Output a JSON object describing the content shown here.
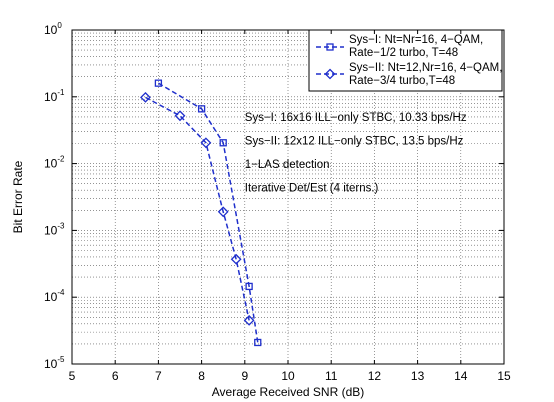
{
  "chart_data": {
    "type": "line",
    "xlabel": "Average Received SNR (dB)",
    "ylabel": "Bit Error Rate",
    "xlim": [
      5,
      15
    ],
    "ylim": [
      1e-05,
      1
    ],
    "y_scale": "log",
    "grid": true,
    "x_ticks": [
      5,
      6,
      7,
      8,
      9,
      10,
      11,
      12,
      13,
      14,
      15
    ],
    "y_ticks": [
      {
        "base": "10",
        "exp": "0",
        "value": 1
      },
      {
        "base": "10",
        "exp": "-1",
        "value": 0.1
      },
      {
        "base": "10",
        "exp": "-2",
        "value": 0.01
      },
      {
        "base": "10",
        "exp": "-3",
        "value": 0.001
      },
      {
        "base": "10",
        "exp": "-4",
        "value": 0.0001
      },
      {
        "base": "10",
        "exp": "-5",
        "value": 1e-05
      }
    ],
    "legend_position": "top-right",
    "series": [
      {
        "name": "Sys-I: Nt=Nr=16, 4-QAM, Rate-1/2 turbo, T=48",
        "legend_lines": [
          "Sys−I: Nt=Nr=16, 4−QAM,",
          "Rate−1/2 turbo, T=48"
        ],
        "marker": "square",
        "color": "#1f2fcc",
        "x": [
          7.0,
          8.0,
          8.5,
          9.1,
          9.3
        ],
        "y": [
          0.16,
          0.066,
          0.0205,
          0.000145,
          2.1e-05
        ]
      },
      {
        "name": "Sys-II: Nt=12,Nr=16, 4-QAM, Rate-3/4 turbo,T=48",
        "legend_lines": [
          "Sys−II: Nt=12,Nr=16, 4−QAM,",
          "Rate−3/4 turbo,T=48"
        ],
        "marker": "diamond",
        "color": "#1f2fcc",
        "x": [
          6.7,
          7.5,
          8.1,
          8.5,
          8.8,
          9.1
        ],
        "y": [
          0.098,
          0.052,
          0.0205,
          0.0019,
          0.00037,
          4.5e-05
        ]
      }
    ],
    "annotations": [
      "Sys−I: 16x16 ILL−only STBC, 10.33 bps/Hz",
      "Sys−II: 12x12 ILL−only STBC, 13.5 bps/Hz",
      "1−LAS detection",
      "Iterative Det/Est (4 iterns.)"
    ]
  }
}
